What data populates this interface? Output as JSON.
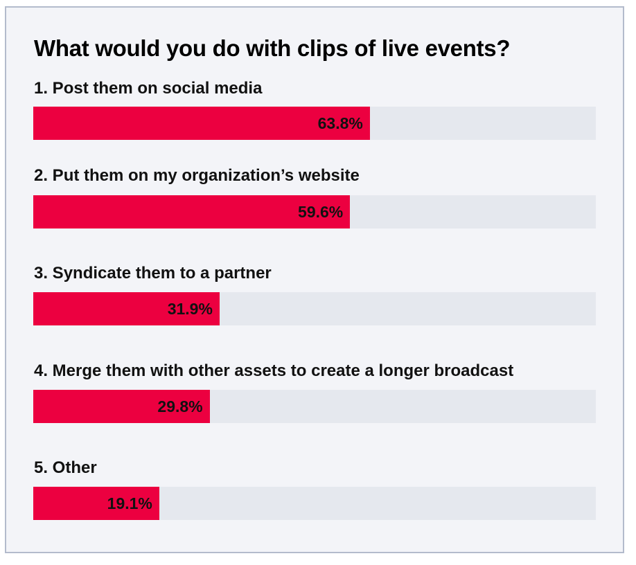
{
  "chart_data": {
    "type": "bar",
    "orientation": "horizontal",
    "title": "What would you do with clips of live events?",
    "categories": [
      "1. Post them on social media",
      "2. Put them on my organization’s website",
      "3. Syndicate them to a partner",
      "4. Merge them with other assets to create a longer broadcast",
      "5. Other"
    ],
    "values": [
      63.8,
      59.6,
      31.9,
      29.8,
      19.1
    ],
    "value_labels": [
      "63.8%",
      "59.6%",
      "31.9%",
      "29.8%",
      "19.1%"
    ],
    "unit": "%",
    "colors": {
      "bar": "#ec0040",
      "track": "#e5e8ee",
      "background": "#f3f4f8",
      "border": "#b3bbcc"
    },
    "grid": false
  }
}
